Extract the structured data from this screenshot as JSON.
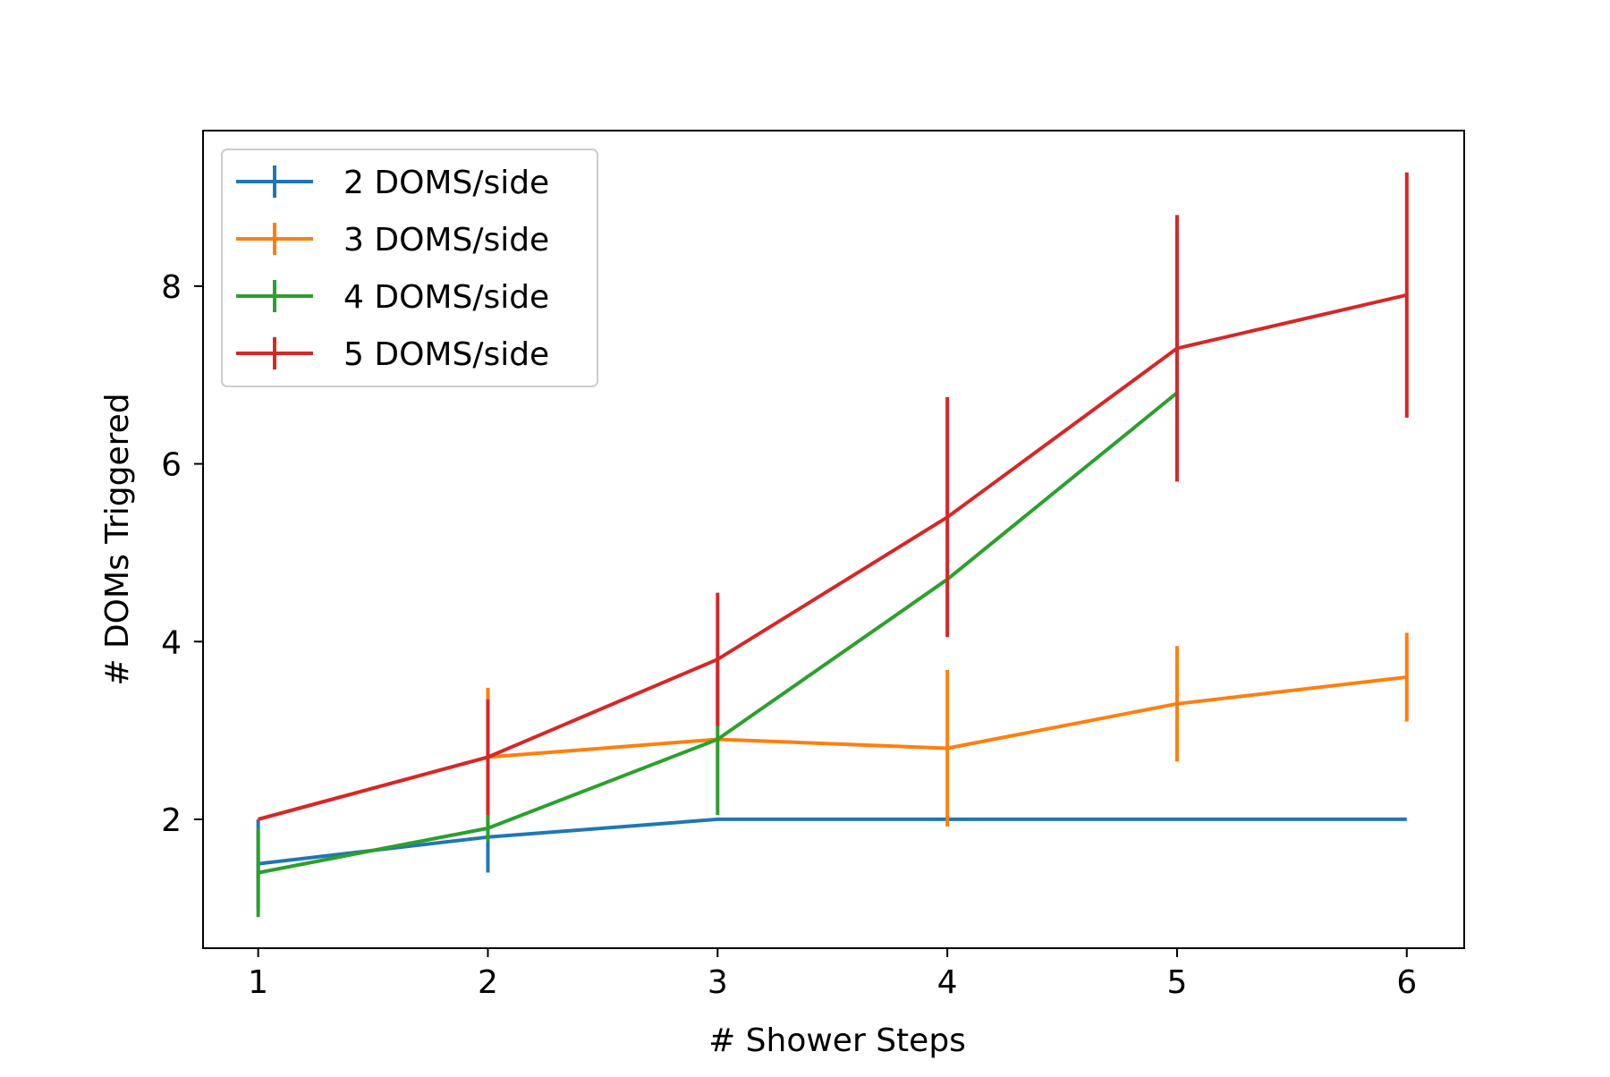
{
  "chart_data": {
    "type": "line",
    "title": "",
    "xlabel": "# Shower Steps",
    "ylabel": "# DOMs Triggered",
    "xlim": [
      0.76,
      6.25
    ],
    "ylim": [
      0.55,
      9.75
    ],
    "xticks": [
      1,
      2,
      3,
      4,
      5,
      6
    ],
    "yticks": [
      2,
      4,
      6,
      8
    ],
    "grid": false,
    "legend_position": "top-left",
    "error_bars": true,
    "series": [
      {
        "name": "2 DOMS/side",
        "color": "#1f77b4",
        "x": [
          1,
          2,
          3,
          4,
          5,
          6
        ],
        "y": [
          1.5,
          1.8,
          2.0,
          2.0,
          2.0,
          2.0
        ],
        "yerr": [
          0.5,
          0.4,
          0.0,
          0.0,
          0.0,
          0.0
        ]
      },
      {
        "name": "3 DOMS/side",
        "color": "#ff7f0e",
        "x": [
          1,
          2,
          3,
          4,
          5,
          6
        ],
        "y": [
          2.0,
          2.7,
          2.9,
          2.8,
          3.3,
          3.6
        ],
        "yerr": [
          0.0,
          0.78,
          0.0,
          0.88,
          0.65,
          0.5
        ]
      },
      {
        "name": "4 DOMS/side",
        "color": "#2ca02c",
        "x": [
          1,
          2,
          3,
          4,
          5
        ],
        "y": [
          1.4,
          1.9,
          2.9,
          4.7,
          6.8
        ],
        "yerr": [
          0.5,
          0.15,
          0.85,
          0.0,
          0.0
        ]
      },
      {
        "name": "5 DOMS/side",
        "color": "#d62728",
        "x": [
          1,
          2,
          3,
          4,
          5,
          6
        ],
        "y": [
          2.0,
          2.7,
          3.8,
          5.4,
          7.3,
          7.9
        ],
        "yerr": [
          0.0,
          0.65,
          0.75,
          1.35,
          1.5,
          1.38
        ]
      }
    ]
  }
}
